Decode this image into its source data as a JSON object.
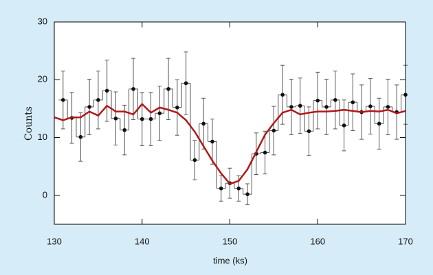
{
  "chart_data": {
    "type": "scatter",
    "x_label": "time (ks)",
    "y_label": "Counts",
    "xlim": [
      130,
      170
    ],
    "ylim": [
      -5,
      30
    ],
    "xticks": [
      130,
      140,
      150,
      160,
      170
    ],
    "yticks": [
      0,
      10,
      20,
      30
    ],
    "x": [
      131,
      132,
      133,
      134,
      135,
      136,
      137,
      138,
      139,
      140,
      141,
      142,
      143,
      144,
      145,
      146,
      147,
      148,
      149,
      150,
      151,
      152,
      153,
      154,
      155,
      156,
      157,
      158,
      159,
      160,
      161,
      162,
      163,
      164,
      165,
      166,
      167,
      168,
      169,
      170
    ],
    "values": [
      16.5,
      13.4,
      10.1,
      15.3,
      16.5,
      18.1,
      13.3,
      11.3,
      18.4,
      13.2,
      13.2,
      14.2,
      18.4,
      15.2,
      19.4,
      6.1,
      12.4,
      9.3,
      1.2,
      2.1,
      1.2,
      0.2,
      7.2,
      7.4,
      11.2,
      17.4,
      15.3,
      15.5,
      11.1,
      16.4,
      15.3,
      16.5,
      12.1,
      16.1,
      14.4,
      15.4,
      12.4,
      15.3,
      14.4,
      17.4
    ],
    "errors": [
      5,
      4.4,
      4.2,
      4.8,
      5,
      5.3,
      4.6,
      4.3,
      5.3,
      4.6,
      4.6,
      4.7,
      5.3,
      4.8,
      5.4,
      3.4,
      4.4,
      3.9,
      2.2,
      2.6,
      2.2,
      1.8,
      3.6,
      3.7,
      4.2,
      5.1,
      4.8,
      4.8,
      4.2,
      4.9,
      4.8,
      5,
      4.4,
      4.9,
      4.7,
      4.8,
      4.4,
      4.8,
      4.7,
      5.1
    ],
    "color": "#111111",
    "model_x": [
      130,
      131,
      132,
      133,
      134,
      135,
      136,
      137,
      138,
      139,
      140,
      141,
      142,
      143,
      144,
      145,
      146,
      147,
      148,
      149,
      150,
      151,
      152,
      153,
      154,
      155,
      156,
      157,
      158,
      159,
      160,
      161,
      162,
      163,
      164,
      165,
      166,
      167,
      168,
      169,
      170
    ],
    "model_values": [
      13.5,
      13,
      13.5,
      13.5,
      14.5,
      13.8,
      15.5,
      14.5,
      14.5,
      14,
      15.8,
      14.3,
      15.2,
      14.8,
      14.3,
      13,
      11,
      8.5,
      6,
      3.8,
      2,
      2.5,
      4.5,
      7.5,
      10.5,
      12.5,
      14.3,
      14.8,
      14,
      14.3,
      14.5,
      14.5,
      14.6,
      14.8,
      14.6,
      14.4,
      14.6,
      14.5,
      14.8,
      14.2,
      14.6
    ],
    "model_color": "#b01818"
  }
}
